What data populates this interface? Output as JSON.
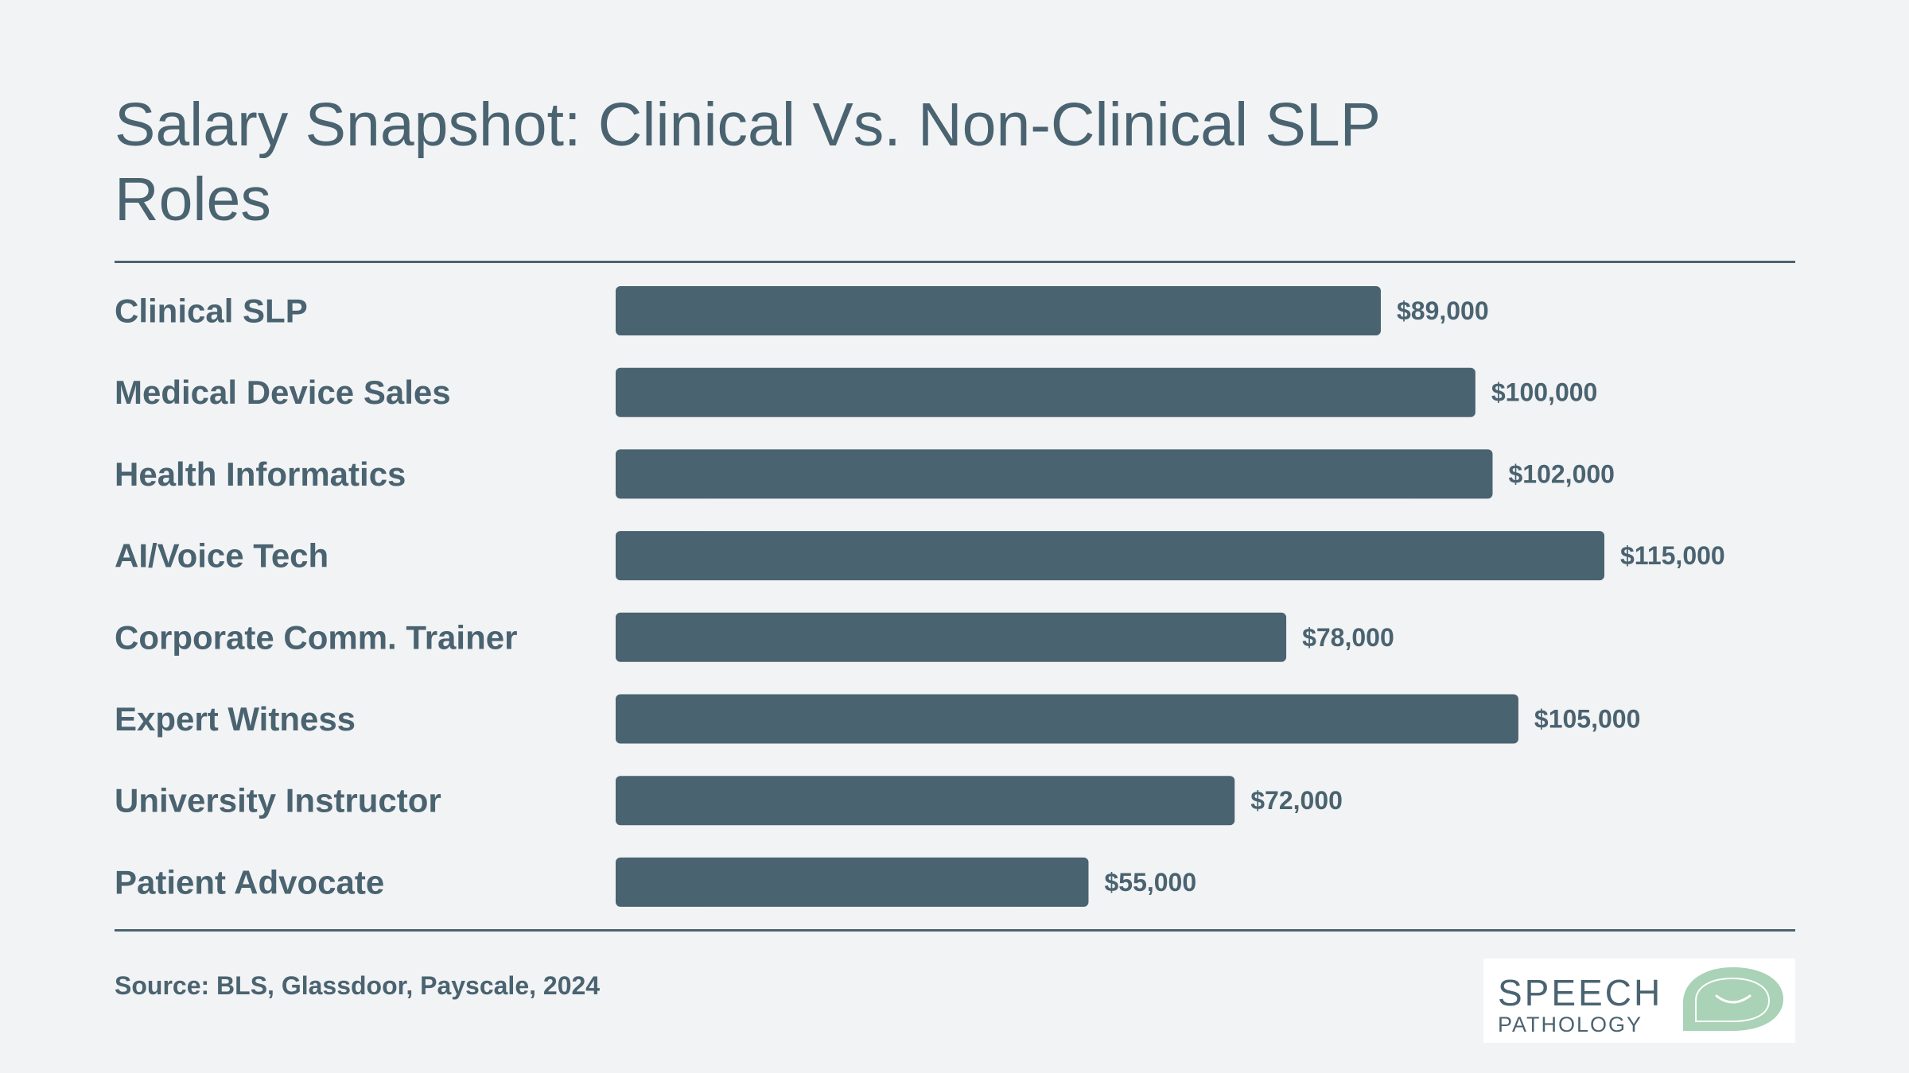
{
  "title": "Salary Snapshot: Clinical Vs. Non-Clinical SLP Roles",
  "source": "Source: BLS, Glassdoor, Payscale, 2024",
  "logo": {
    "line1": "SPEECH",
    "line2": "PATHOLOGY"
  },
  "colors": {
    "background": "#f2f3f5",
    "bar": "#4a6370",
    "text": "#4a6370",
    "logo_accent": "#a9d2b6"
  },
  "chart_data": {
    "type": "bar",
    "orientation": "horizontal",
    "title": "Salary Snapshot: Clinical Vs. Non-Clinical SLP Roles",
    "xlabel": "",
    "ylabel": "",
    "grid": false,
    "categories": [
      "Clinical SLP",
      "Medical Device Sales",
      "Health Informatics",
      "AI/Voice Tech",
      "Corporate Comm. Trainer",
      "Expert Witness",
      "University Instructor",
      "Patient Advocate"
    ],
    "values": [
      89000,
      100000,
      102000,
      115000,
      78000,
      105000,
      72000,
      55000
    ],
    "value_labels": [
      "$89,000",
      "$100,000",
      "$102,000",
      "$115,000",
      "$78,000",
      "$105,000",
      "$72,000",
      "$55,000"
    ]
  }
}
